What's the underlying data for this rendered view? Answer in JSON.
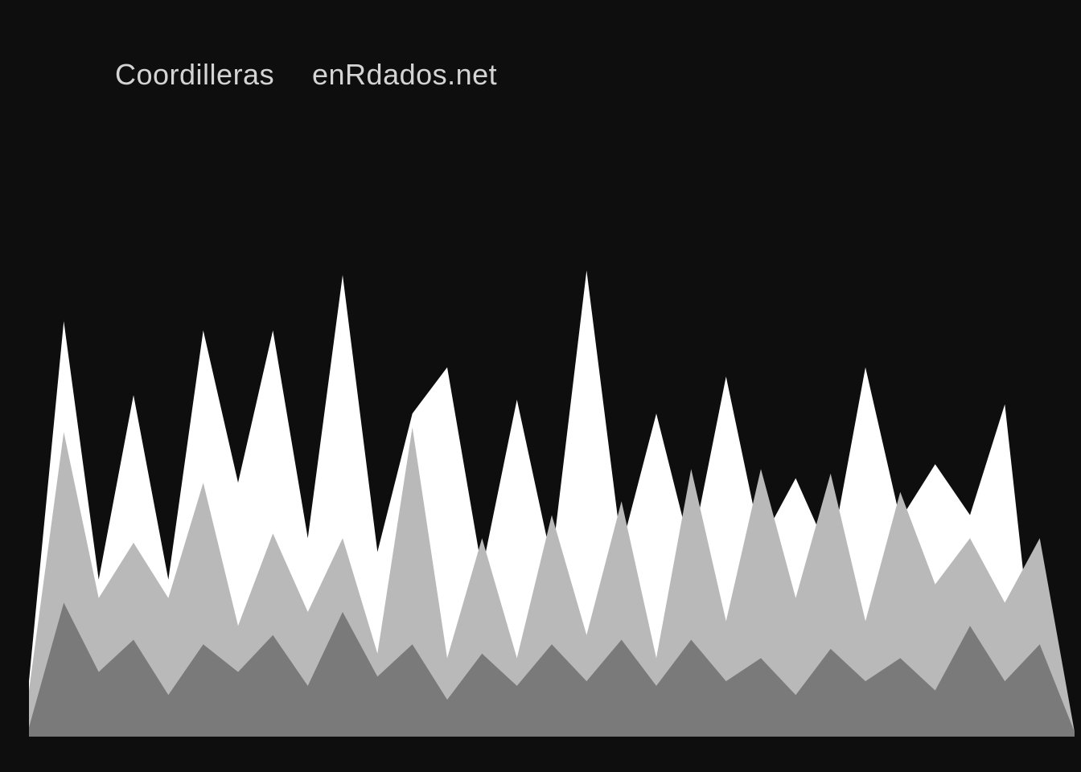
{
  "chart_data": {
    "type": "area",
    "title": "Coordilleras",
    "subtitle": "enRdados.net",
    "xlabel": "",
    "ylabel": "",
    "grid": false,
    "legend": "none",
    "x": [
      0,
      1,
      2,
      3,
      4,
      5,
      6,
      7,
      8,
      9,
      10,
      11,
      12,
      13,
      14,
      15,
      16,
      17,
      18,
      19,
      20,
      21,
      22,
      23,
      24,
      25,
      26,
      27,
      28,
      29,
      30
    ],
    "xlim": [
      0,
      30
    ],
    "ylim": [
      0,
      100
    ],
    "series": [
      {
        "color": "#ffffff",
        "values": [
          12,
          90,
          34,
          74,
          34,
          88,
          55,
          88,
          43,
          100,
          40,
          70,
          80,
          36,
          73,
          38,
          101,
          41,
          70,
          40,
          78,
          42,
          56,
          39,
          80,
          47,
          59,
          48,
          72,
          3,
          0
        ]
      },
      {
        "color": "#b9b9b9",
        "values": [
          10,
          66,
          30,
          42,
          30,
          55,
          24,
          44,
          27,
          43,
          18,
          67,
          17,
          43,
          17,
          48,
          22,
          51,
          17,
          58,
          25,
          58,
          30,
          57,
          25,
          53,
          33,
          43,
          29,
          43,
          1
        ]
      },
      {
        "color": "#7a7a7a",
        "values": [
          2,
          29,
          14,
          21,
          9,
          20,
          14,
          22,
          11,
          27,
          13,
          20,
          8,
          18,
          11,
          20,
          12,
          21,
          11,
          21,
          12,
          17,
          9,
          19,
          12,
          17,
          10,
          24,
          12,
          20,
          1
        ]
      }
    ]
  }
}
